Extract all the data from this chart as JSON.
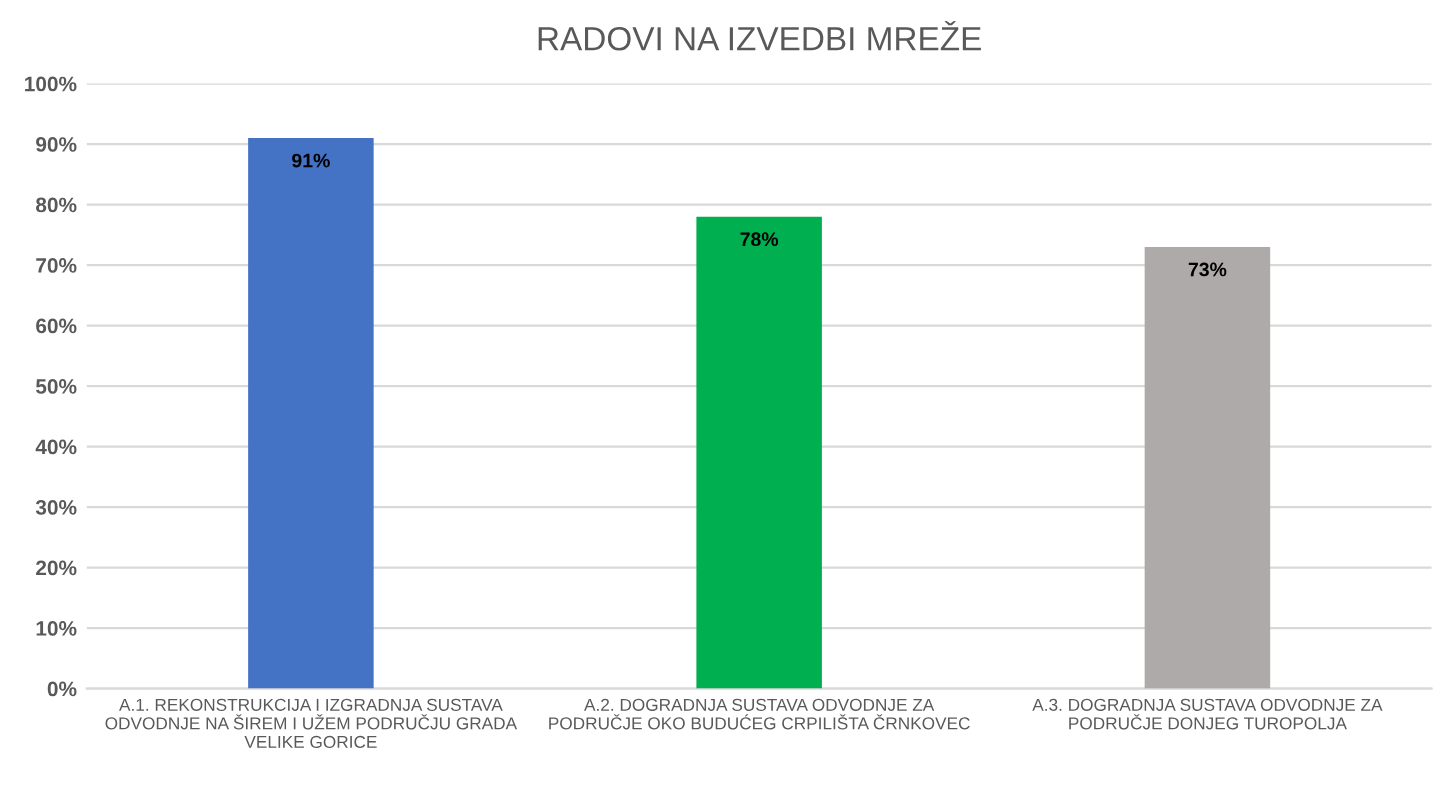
{
  "chart_data": {
    "type": "bar",
    "title": "RADOVI NA IZVEDBI MREŽE",
    "categories": [
      "A.1. REKONSTRUKCIJA I IZGRADNJA SUSTAVA\nODVODNJE NA ŠIREM I UŽEM PODRUČJU GRADA\nVELIKE GORICE",
      "A.2. DOGRADNJA SUSTAVA ODVODNJE ZA\nPODRUČJE OKO BUDUĆEG CRPILIŠTA ČRNKOVEC",
      "A.3. DOGRADNJA SUSTAVA ODVODNJE ZA\nPODRUČJE DONJEG TUROPOLJA"
    ],
    "values": [
      91,
      78,
      73
    ],
    "colors": [
      "#4472c4",
      "#00b050",
      "#aeaaaa"
    ],
    "value_labels": [
      "91%",
      "78%",
      "73%"
    ],
    "ylim": [
      0,
      100
    ],
    "yticks": [
      {
        "value": 0,
        "label": "0%"
      },
      {
        "value": 10,
        "label": "10%"
      },
      {
        "value": 20,
        "label": "20%"
      },
      {
        "value": 30,
        "label": "30%"
      },
      {
        "value": 40,
        "label": "40%"
      },
      {
        "value": 50,
        "label": "50%"
      },
      {
        "value": 60,
        "label": "60%"
      },
      {
        "value": 70,
        "label": "70%"
      },
      {
        "value": 80,
        "label": "80%"
      },
      {
        "value": 90,
        "label": "90%"
      },
      {
        "value": 100,
        "label": "100%"
      }
    ],
    "grid": "y"
  }
}
